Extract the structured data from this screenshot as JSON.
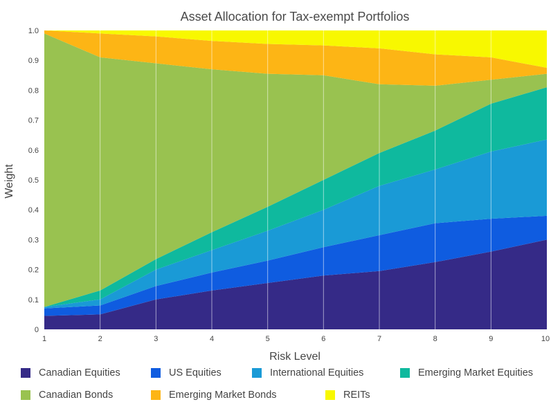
{
  "chart_data": {
    "type": "area",
    "stacked": true,
    "title": "Asset Allocation for Tax-exempt Portfolios",
    "xlabel": "Risk Level",
    "ylabel": "Weight",
    "x": [
      1,
      2,
      3,
      4,
      5,
      6,
      7,
      8,
      9,
      10
    ],
    "xlim": [
      1,
      10
    ],
    "ylim": [
      0,
      1.0
    ],
    "x_tick_labels": [
      "1",
      "2",
      "3",
      "4",
      "5",
      "6",
      "7",
      "8",
      "9",
      "10"
    ],
    "y_tick_labels": [
      "0",
      "0.1",
      "0.2",
      "0.3",
      "0.4",
      "0.5",
      "0.6",
      "0.7",
      "0.8",
      "0.9",
      "1.0"
    ],
    "grid": "vertical",
    "legend_position": "bottom",
    "series": [
      {
        "name": "Canadian Equities",
        "color": "#352a87",
        "values": [
          0.045,
          0.05,
          0.1,
          0.13,
          0.155,
          0.18,
          0.195,
          0.225,
          0.26,
          0.3
        ]
      },
      {
        "name": "US Equities",
        "color": "#0f5ce0",
        "values": [
          0.025,
          0.03,
          0.045,
          0.06,
          0.075,
          0.095,
          0.12,
          0.13,
          0.11,
          0.08
        ]
      },
      {
        "name": "International Equities",
        "color": "#1a9ad6",
        "values": [
          0.005,
          0.02,
          0.055,
          0.075,
          0.1,
          0.125,
          0.165,
          0.18,
          0.225,
          0.255
        ]
      },
      {
        "name": "Emerging Market Equities",
        "color": "#0fb99e",
        "values": [
          0.0,
          0.03,
          0.035,
          0.06,
          0.08,
          0.1,
          0.11,
          0.13,
          0.16,
          0.175
        ]
      },
      {
        "name": "Canadian Bonds",
        "color": "#99c250",
        "values": [
          0.915,
          0.78,
          0.655,
          0.545,
          0.445,
          0.35,
          0.23,
          0.15,
          0.08,
          0.045
        ]
      },
      {
        "name": "Emerging Market Bonds",
        "color": "#fdb515",
        "values": [
          0.01,
          0.08,
          0.09,
          0.095,
          0.1,
          0.1,
          0.12,
          0.105,
          0.075,
          0.02
        ]
      },
      {
        "name": "REITs",
        "color": "#f8f800",
        "values": [
          0.0,
          0.01,
          0.02,
          0.035,
          0.045,
          0.05,
          0.06,
          0.08,
          0.09,
          0.125
        ]
      }
    ]
  }
}
